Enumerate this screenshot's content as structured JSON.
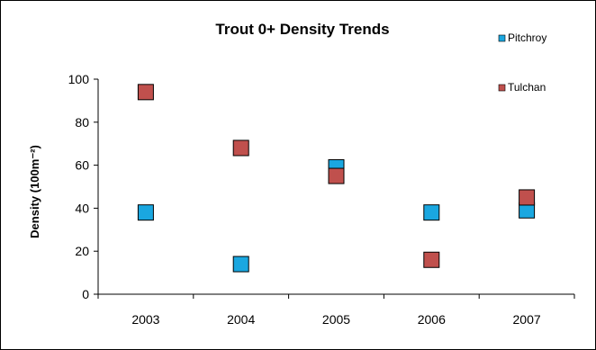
{
  "chart_data": {
    "type": "scatter",
    "title": "Trout 0+ Density Trends",
    "xlabel": "",
    "ylabel": "Density (100m⁻²)",
    "categories": [
      "2003",
      "2004",
      "2005",
      "2006",
      "2007"
    ],
    "ylim": [
      0,
      100
    ],
    "yticks": [
      0,
      20,
      40,
      60,
      80,
      100
    ],
    "grid": false,
    "legend_position": "top-right",
    "series": [
      {
        "name": "Pitchroy",
        "color": "#1AA7E0",
        "values": [
          38,
          14,
          59,
          38,
          39
        ]
      },
      {
        "name": "Tulchan",
        "color": "#C0504D",
        "values": [
          94,
          68,
          55,
          16,
          45
        ]
      }
    ]
  }
}
